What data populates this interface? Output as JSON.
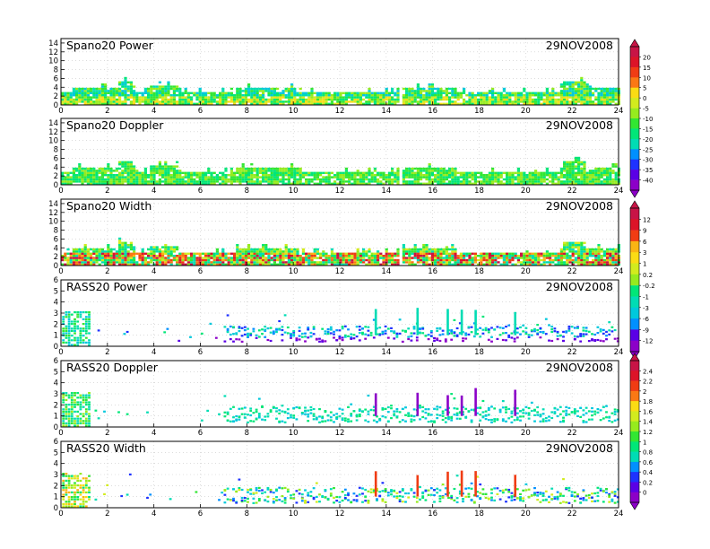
{
  "figure": {
    "date": "29NOV2008"
  },
  "colors": {
    "rainbow": [
      "#8c00c8",
      "#5a00e6",
      "#1e32ff",
      "#0090ff",
      "#00c8dc",
      "#00dcb4",
      "#00e678",
      "#32e632",
      "#96eb1e",
      "#d2eb1e",
      "#fadc14",
      "#fab414",
      "#fa7814",
      "#f03c14",
      "#dc1428",
      "#c81446"
    ]
  },
  "chart_data": [
    {
      "type": "heatmap",
      "title": "Spano20 Power",
      "date": "29NOV2008",
      "x_ticks": [
        "0",
        "2",
        "4",
        "6",
        "8",
        "10",
        "12",
        "14",
        "16",
        "18",
        "20",
        "22",
        "24"
      ],
      "y_ticks": [
        "0",
        "2",
        "4",
        "6",
        "8",
        "10",
        "12",
        "14"
      ],
      "xlim": [
        0,
        24
      ],
      "ylim": [
        0,
        15
      ],
      "colorbar": {
        "ticks": [
          "20",
          "15",
          "10",
          "5",
          "0",
          "-5",
          "-10",
          "-15",
          "-20",
          "-25",
          "-30",
          "-35",
          "-40"
        ]
      }
    },
    {
      "type": "heatmap",
      "title": "Spano20 Doppler",
      "date": "29NOV2008",
      "x_ticks": [
        "0",
        "2",
        "4",
        "6",
        "8",
        "10",
        "12",
        "14",
        "16",
        "18",
        "20",
        "22",
        "24"
      ],
      "y_ticks": [
        "0",
        "2",
        "4",
        "6",
        "8",
        "10",
        "12",
        "14"
      ],
      "xlim": [
        0,
        24
      ],
      "ylim": [
        0,
        15
      ]
    },
    {
      "type": "heatmap",
      "title": "Spano20 Width",
      "date": "29NOV2008",
      "x_ticks": [
        "0",
        "2",
        "4",
        "6",
        "8",
        "10",
        "12",
        "14",
        "16",
        "18",
        "20",
        "22",
        "24"
      ],
      "y_ticks": [
        "0",
        "2",
        "4",
        "6",
        "8",
        "10",
        "12",
        "14"
      ],
      "xlim": [
        0,
        24
      ],
      "ylim": [
        0,
        15
      ],
      "colorbar": {
        "ticks": [
          "12",
          "9",
          "6",
          "3",
          "1",
          "0.2",
          "-0.2",
          "-1",
          "-3",
          "-6",
          "-9",
          "-12"
        ]
      }
    },
    {
      "type": "heatmap",
      "title": "RASS20 Power",
      "date": "29NOV2008",
      "x_ticks": [
        "0",
        "2",
        "4",
        "6",
        "8",
        "10",
        "12",
        "14",
        "16",
        "18",
        "20",
        "22",
        "24"
      ],
      "y_ticks": [
        "0",
        "1",
        "2",
        "3",
        "4",
        "5",
        "6"
      ],
      "xlim": [
        0,
        24
      ],
      "ylim": [
        0,
        6
      ]
    },
    {
      "type": "heatmap",
      "title": "RASS20 Doppler",
      "date": "29NOV2008",
      "x_ticks": [
        "0",
        "2",
        "4",
        "6",
        "8",
        "10",
        "12",
        "14",
        "16",
        "18",
        "20",
        "22",
        "24"
      ],
      "y_ticks": [
        "0",
        "1",
        "2",
        "3",
        "4",
        "5",
        "6"
      ],
      "xlim": [
        0,
        24
      ],
      "ylim": [
        0,
        6
      ],
      "colorbar": {
        "ticks": [
          "2.4",
          "2.2",
          "2",
          "1.8",
          "1.6",
          "1.4",
          "1.2",
          "1",
          "0.8",
          "0.6",
          "0.4",
          "0.2",
          "0"
        ]
      }
    },
    {
      "type": "heatmap",
      "title": "RASS20 Width",
      "date": "29NOV2008",
      "x_ticks": [
        "0",
        "2",
        "4",
        "6",
        "8",
        "10",
        "12",
        "14",
        "16",
        "18",
        "20",
        "22",
        "24"
      ],
      "y_ticks": [
        "0",
        "1",
        "2",
        "3",
        "4",
        "5",
        "6"
      ],
      "xlim": [
        0,
        24
      ],
      "ylim": [
        0,
        6
      ]
    }
  ]
}
